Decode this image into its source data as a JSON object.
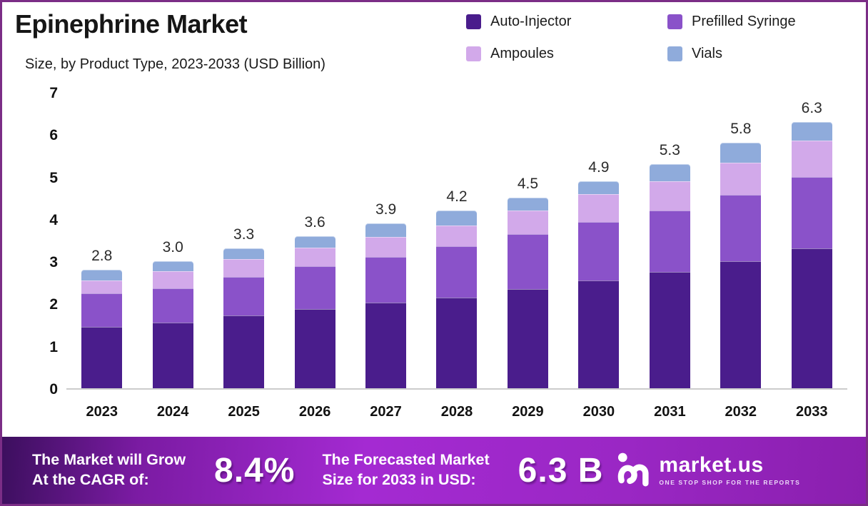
{
  "header": {
    "title": "Epinephrine Market",
    "subtitle": "Size, by Product Type, 2023-2033 (USD Billion)"
  },
  "chart_data": {
    "type": "bar",
    "stacked": true,
    "title": "Epinephrine Market",
    "subtitle": "Size, by Product Type, 2023-2033 (USD Billion)",
    "unit": "USD Billion",
    "categories": [
      "2023",
      "2024",
      "2025",
      "2026",
      "2027",
      "2028",
      "2029",
      "2030",
      "2031",
      "2032",
      "2033"
    ],
    "series": [
      {
        "name": "Auto-Injector",
        "color": "#4a1d8c",
        "values": [
          1.45,
          1.55,
          1.72,
          1.88,
          2.02,
          2.15,
          2.35,
          2.55,
          2.75,
          3.0,
          3.3
        ]
      },
      {
        "name": "Prefilled Syringe",
        "color": "#8a52c9",
        "values": [
          0.8,
          0.82,
          0.92,
          1.0,
          1.08,
          1.2,
          1.3,
          1.38,
          1.45,
          1.58,
          1.7
        ]
      },
      {
        "name": "Ampoules",
        "color": "#d2a9ea",
        "values": [
          0.3,
          0.4,
          0.42,
          0.45,
          0.47,
          0.5,
          0.55,
          0.65,
          0.7,
          0.75,
          0.85
        ]
      },
      {
        "name": "Vials",
        "color": "#8fabdb",
        "values": [
          0.25,
          0.23,
          0.24,
          0.27,
          0.33,
          0.35,
          0.3,
          0.32,
          0.4,
          0.47,
          0.45
        ]
      }
    ],
    "totals": [
      2.8,
      3.0,
      3.3,
      3.6,
      3.9,
      4.2,
      4.5,
      4.9,
      5.3,
      5.8,
      6.3
    ],
    "total_labels": [
      "2.8",
      "3.0",
      "3.3",
      "3.6",
      "3.9",
      "4.2",
      "4.5",
      "4.9",
      "5.3",
      "5.8",
      "6.3"
    ],
    "ylim": [
      0,
      7
    ],
    "y_ticks": [
      0,
      1,
      2,
      3,
      4,
      5,
      6,
      7
    ],
    "grid": false,
    "legend_position": "top-right",
    "xlabel": "",
    "ylabel": ""
  },
  "banner": {
    "cagr_label_line1": "The Market will Grow",
    "cagr_label_line2": "At the CAGR of:",
    "cagr_value": "8.4%",
    "forecast_label_line1": "The Forecasted Market",
    "forecast_label_line2": "Size for 2033 in USD:",
    "forecast_value": "6.3 B",
    "logo_text": "market.us",
    "logo_tagline": "ONE STOP SHOP FOR THE REPORTS"
  },
  "colors": {
    "frame_border": "#7b2d86",
    "baseline": "#cccccc",
    "banner_gradient": [
      "#3c0f5e",
      "#a42ad2",
      "#8a1fae"
    ],
    "title_text": "#161616"
  }
}
